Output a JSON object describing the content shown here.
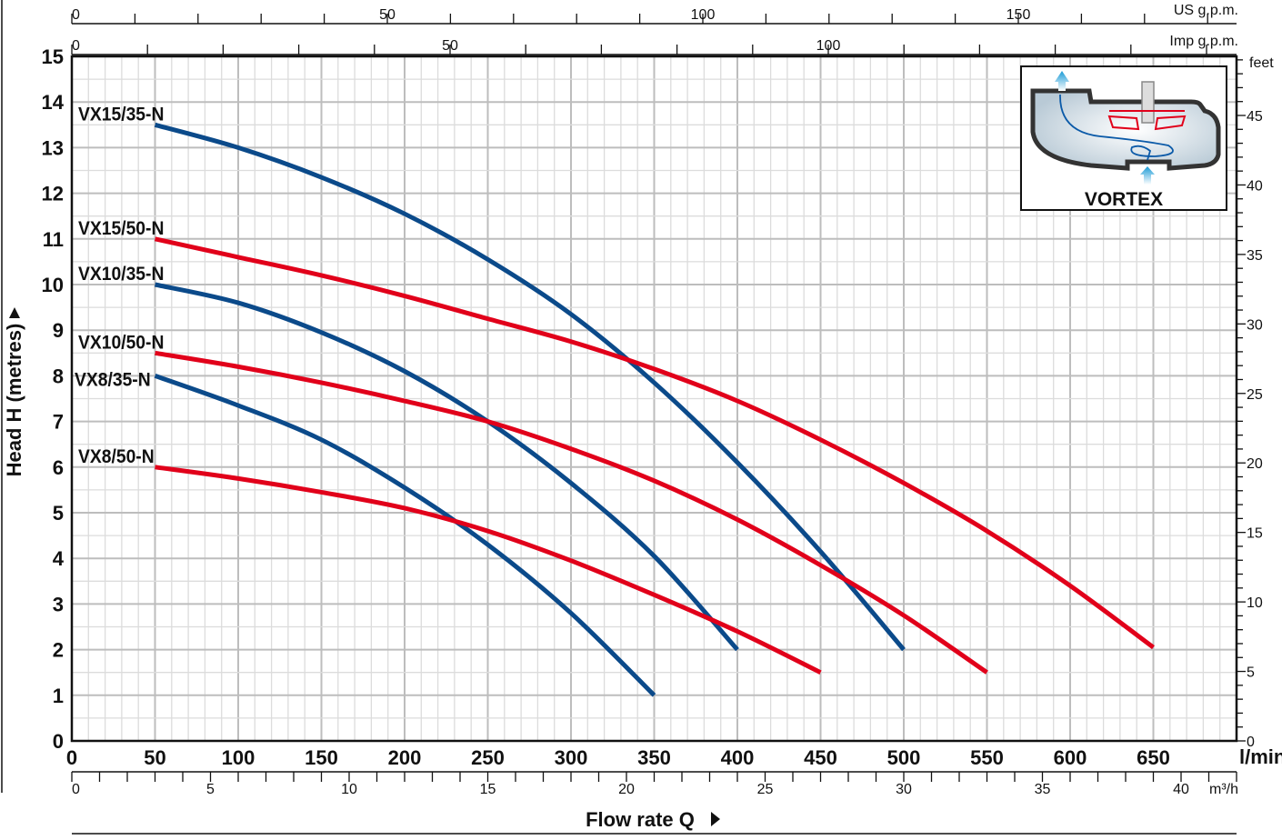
{
  "chart_data": {
    "type": "line",
    "xlabel": "Flow rate  Q",
    "ylabel": "Head H (metres)",
    "x_unit": "l/min",
    "xlim": [
      0,
      700
    ],
    "ylim": [
      0,
      15
    ],
    "x_ticks": [
      0,
      50,
      100,
      150,
      200,
      250,
      300,
      350,
      400,
      450,
      500,
      550,
      600,
      650
    ],
    "y_ticks": [
      0,
      1,
      2,
      3,
      4,
      5,
      6,
      7,
      8,
      9,
      10,
      11,
      12,
      13,
      14,
      15
    ],
    "grid": true,
    "secondary_axes": {
      "us_gpm": {
        "label": "US g.p.m.",
        "ticks": [
          0,
          50,
          100,
          150
        ]
      },
      "imp_gpm": {
        "label": "Imp g.p.m.",
        "ticks": [
          0,
          50,
          100
        ]
      },
      "m3h": {
        "label": "m³/h",
        "ticks": [
          0,
          5,
          10,
          15,
          20,
          25,
          30,
          35,
          40
        ]
      },
      "feet": {
        "label": "feet",
        "ticks": [
          0,
          5,
          10,
          15,
          20,
          25,
          30,
          35,
          40,
          45
        ]
      }
    },
    "series": [
      {
        "name": "VX15/35-N",
        "color": "#0b4a8a",
        "x": [
          50,
          100,
          150,
          200,
          250,
          300,
          350,
          400,
          450,
          500
        ],
        "y": [
          13.5,
          13.0,
          12.35,
          11.55,
          10.55,
          9.35,
          7.85,
          6.1,
          4.15,
          2.0
        ]
      },
      {
        "name": "VX15/50-N",
        "color": "#e1001a",
        "x": [
          50,
          100,
          150,
          200,
          250,
          300,
          350,
          400,
          450,
          500,
          550,
          600,
          650
        ],
        "y": [
          11,
          10.6,
          10.2,
          9.75,
          9.25,
          8.75,
          8.15,
          7.45,
          6.6,
          5.65,
          4.6,
          3.4,
          2.05
        ]
      },
      {
        "name": "VX10/35-N",
        "color": "#0b4a8a",
        "x": [
          50,
          100,
          150,
          200,
          250,
          300,
          350,
          400
        ],
        "y": [
          10,
          9.6,
          8.95,
          8.1,
          7.0,
          5.65,
          4.05,
          2.0
        ]
      },
      {
        "name": "VX10/50-N",
        "color": "#e1001a",
        "x": [
          50,
          100,
          150,
          200,
          250,
          300,
          350,
          400,
          450,
          500,
          550
        ],
        "y": [
          8.5,
          8.2,
          7.85,
          7.45,
          7.0,
          6.4,
          5.7,
          4.85,
          3.85,
          2.75,
          1.5
        ]
      },
      {
        "name": "VX8/35-N",
        "color": "#0b4a8a",
        "x": [
          50,
          100,
          150,
          200,
          250,
          300,
          350
        ],
        "y": [
          8,
          7.35,
          6.6,
          5.55,
          4.3,
          2.8,
          1.0
        ]
      },
      {
        "name": "VX8/50-N",
        "color": "#e1001a",
        "x": [
          50,
          100,
          150,
          200,
          250,
          300,
          350,
          400,
          450
        ],
        "y": [
          6,
          5.75,
          5.45,
          5.1,
          4.6,
          3.95,
          3.2,
          2.4,
          1.5
        ]
      }
    ],
    "inset_label": "VORTEX"
  }
}
